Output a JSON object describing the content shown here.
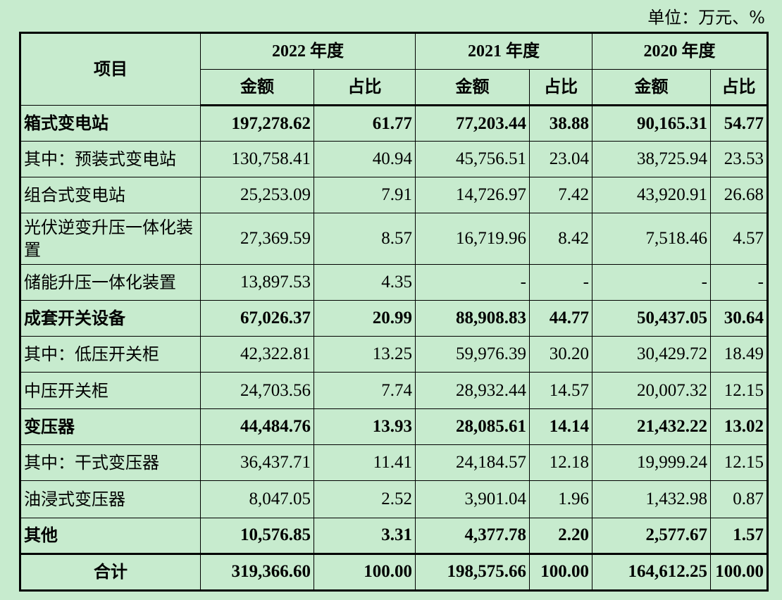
{
  "unit_label": "单位：万元、%",
  "header": {
    "item": "项目",
    "years": [
      "2022 年度",
      "2021 年度",
      "2020 年度"
    ],
    "amount": "金额",
    "ratio": "占比"
  },
  "rows": [
    {
      "label": "箱式变电站",
      "v": [
        "197,278.62",
        "61.77",
        "77,203.44",
        "38.88",
        "90,165.31",
        "54.77"
      ]
    },
    {
      "label": "其中：预装式变电站",
      "v": [
        "130,758.41",
        "40.94",
        "45,756.51",
        "23.04",
        "38,725.94",
        "23.53"
      ]
    },
    {
      "label": "组合式变电站",
      "v": [
        "25,253.09",
        "7.91",
        "14,726.97",
        "7.42",
        "43,920.91",
        "26.68"
      ]
    },
    {
      "label": "光伏逆变升压一体化装置",
      "v": [
        "27,369.59",
        "8.57",
        "16,719.96",
        "8.42",
        "7,518.46",
        "4.57"
      ]
    },
    {
      "label": "储能升压一体化装置",
      "v": [
        "13,897.53",
        "4.35",
        "-",
        "-",
        "-",
        "-"
      ]
    },
    {
      "label": "成套开关设备",
      "v": [
        "67,026.37",
        "20.99",
        "88,908.83",
        "44.77",
        "50,437.05",
        "30.64"
      ]
    },
    {
      "label": "其中：低压开关柜",
      "v": [
        "42,322.81",
        "13.25",
        "59,976.39",
        "30.20",
        "30,429.72",
        "18.49"
      ]
    },
    {
      "label": "中压开关柜",
      "v": [
        "24,703.56",
        "7.74",
        "28,932.44",
        "14.57",
        "20,007.32",
        "12.15"
      ]
    },
    {
      "label": "变压器",
      "v": [
        "44,484.76",
        "13.93",
        "28,085.61",
        "14.14",
        "21,432.22",
        "13.02"
      ]
    },
    {
      "label": "其中：干式变压器",
      "v": [
        "36,437.71",
        "11.41",
        "24,184.57",
        "12.18",
        "19,999.24",
        "12.15"
      ]
    },
    {
      "label": "油浸式变压器",
      "v": [
        "8,047.05",
        "2.52",
        "3,901.04",
        "1.96",
        "1,432.98",
        "0.87"
      ]
    },
    {
      "label": "其他",
      "v": [
        "10,576.85",
        "3.31",
        "4,377.78",
        "2.20",
        "2,577.67",
        "1.57"
      ]
    }
  ],
  "total": {
    "label": "合计",
    "v": [
      "319,366.60",
      "100.00",
      "198,575.66",
      "100.00",
      "164,612.25",
      "100.00"
    ]
  }
}
